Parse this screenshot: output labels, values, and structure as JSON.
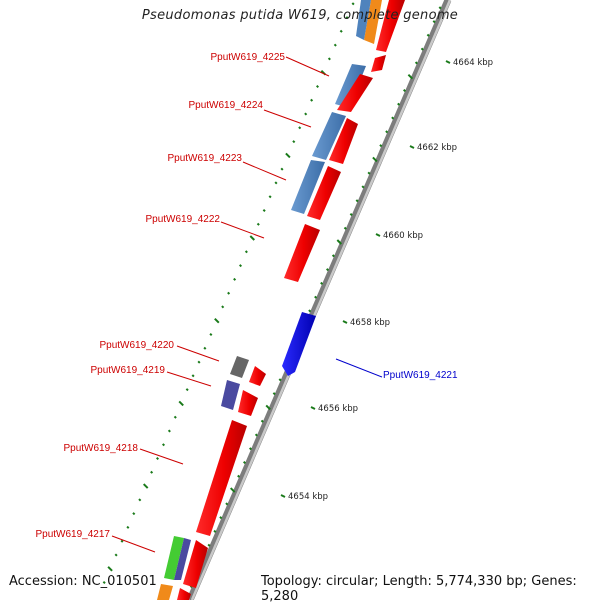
{
  "title": "Pseudomonas putida W619, complete genome",
  "accession": "Accession: NC_010501",
  "topology": "Topology: circular; Length: 5,774,330 bp; Genes: 5,280",
  "colors": {
    "backbone_dark": "#8a8a8a",
    "backbone_light": "#c8c8c8",
    "gene_forward": "#ff0000",
    "gene_reverse": "#0000ff",
    "tick": "#1a7a1a",
    "label_red": "#cc0000",
    "label_blue": "#0000cc"
  },
  "scale_labels": [
    {
      "id": "kbp-4664",
      "text": "4664 kbp"
    },
    {
      "id": "kbp-4662",
      "text": "4662 kbp"
    },
    {
      "id": "kbp-4660",
      "text": "4660 kbp"
    },
    {
      "id": "kbp-4658",
      "text": "4658 kbp"
    },
    {
      "id": "kbp-4656",
      "text": "4656 kbp"
    },
    {
      "id": "kbp-4654",
      "text": "4654 kbp"
    }
  ],
  "gene_labels": [
    {
      "id": "4225",
      "text": "PputW619_4225",
      "color": "red"
    },
    {
      "id": "4224",
      "text": "PputW619_4224",
      "color": "red"
    },
    {
      "id": "4223",
      "text": "PputW619_4223",
      "color": "red"
    },
    {
      "id": "4222",
      "text": "PputW619_4222",
      "color": "red"
    },
    {
      "id": "4220",
      "text": "PputW619_4220",
      "color": "red"
    },
    {
      "id": "4219",
      "text": "PputW619_4219",
      "color": "red"
    },
    {
      "id": "4218",
      "text": "PputW619_4218",
      "color": "red"
    },
    {
      "id": "4217",
      "text": "PputW619_4217",
      "color": "red"
    },
    {
      "id": "4221",
      "text": "PputW619_4221",
      "color": "blue"
    }
  ]
}
